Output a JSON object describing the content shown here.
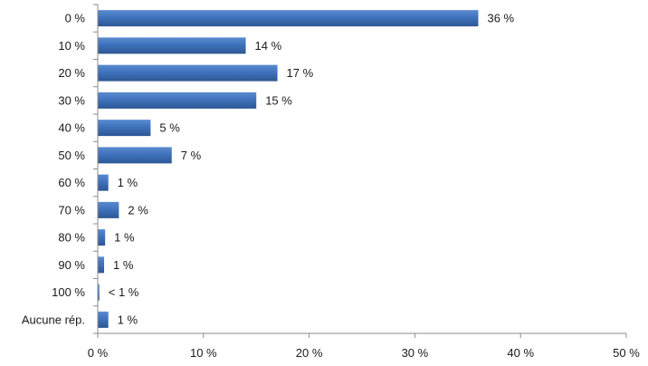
{
  "chart_data": {
    "type": "bar",
    "orientation": "horizontal",
    "categories": [
      "0 %",
      "10 %",
      "20 %",
      "30 %",
      "40 %",
      "50 %",
      "60 %",
      "70 %",
      "80 %",
      "90 %",
      "100 %",
      "Aucune rép."
    ],
    "values": [
      36,
      14,
      17,
      15,
      5,
      7,
      1,
      2,
      0.7,
      0.6,
      0.15,
      1
    ],
    "data_labels": [
      "36 %",
      "14 %",
      "17 %",
      "15 %",
      "5 %",
      "7 %",
      "1 %",
      "2 %",
      "1 %",
      "1 %",
      "< 1 %",
      "1 %"
    ],
    "x_ticks": [
      0,
      10,
      20,
      30,
      40,
      50
    ],
    "x_tick_labels": [
      "0 %",
      "10 %",
      "20 %",
      "30 %",
      "40 %",
      "50 %"
    ],
    "xlim": [
      0,
      50
    ],
    "grid": false,
    "legend": "none",
    "bar_color": "#3F72BC",
    "bar_color_dark": "#2D5793",
    "bar_color_light": "#5A8BD0"
  }
}
